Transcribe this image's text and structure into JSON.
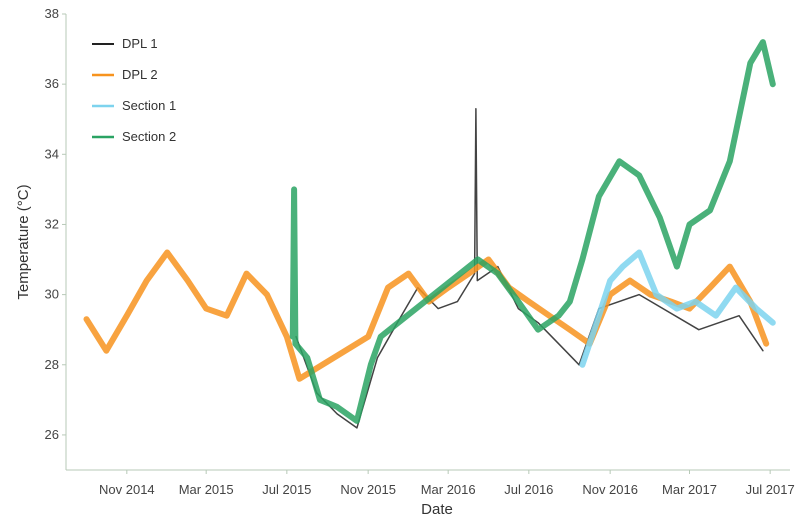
{
  "chart_data": {
    "type": "line",
    "xlabel": "Date",
    "ylabel": "Temperature (°C)",
    "x_range": [
      "2014-08-01",
      "2017-07-31"
    ],
    "ylim": [
      25,
      38
    ],
    "x_ticks": [
      {
        "date": "2014-11-01",
        "label": "Nov 2014"
      },
      {
        "date": "2015-03-01",
        "label": "Mar 2015"
      },
      {
        "date": "2015-07-01",
        "label": "Jul 2015"
      },
      {
        "date": "2015-11-01",
        "label": "Nov 2015"
      },
      {
        "date": "2016-03-01",
        "label": "Mar 2016"
      },
      {
        "date": "2016-07-01",
        "label": "Jul 2016"
      },
      {
        "date": "2016-11-01",
        "label": "Nov 2016"
      },
      {
        "date": "2017-03-01",
        "label": "Mar 2017"
      },
      {
        "date": "2017-07-01",
        "label": "Jul 2017"
      }
    ],
    "y_ticks": [
      26,
      28,
      30,
      32,
      34,
      36,
      38
    ],
    "grid": false,
    "legend_position": "top-left",
    "series": [
      {
        "name": "DPL 1",
        "color": "#222222",
        "points": [
          [
            "2015-07-15",
            28.8
          ],
          [
            "2015-08-15",
            27.2
          ],
          [
            "2015-09-15",
            26.6
          ],
          [
            "2015-10-15",
            26.2
          ],
          [
            "2015-11-15",
            28.2
          ],
          [
            "2015-12-15",
            29.2
          ],
          [
            "2016-01-15",
            30.2
          ],
          [
            "2016-02-15",
            29.6
          ],
          [
            "2016-03-15",
            29.8
          ],
          [
            "2016-04-10",
            30.6
          ],
          [
            "2016-04-12",
            35.3
          ],
          [
            "2016-04-14",
            30.4
          ],
          [
            "2016-05-15",
            30.8
          ],
          [
            "2016-06-15",
            29.6
          ],
          [
            "2016-07-15",
            29.2
          ],
          [
            "2016-08-15",
            28.6
          ],
          [
            "2016-09-15",
            28.0
          ],
          [
            "2016-10-15",
            29.6
          ],
          [
            "2016-12-15",
            30.0
          ],
          [
            "2017-03-15",
            29.0
          ],
          [
            "2017-05-15",
            29.4
          ],
          [
            "2017-06-20",
            28.4
          ]
        ]
      },
      {
        "name": "DPL 2",
        "color": "#f7931e",
        "points": [
          [
            "2014-09-01",
            29.3
          ],
          [
            "2014-10-01",
            28.4
          ],
          [
            "2014-11-01",
            29.4
          ],
          [
            "2014-12-01",
            30.4
          ],
          [
            "2015-01-01",
            31.2
          ],
          [
            "2015-02-01",
            30.4
          ],
          [
            "2015-03-01",
            29.6
          ],
          [
            "2015-04-01",
            29.4
          ],
          [
            "2015-05-01",
            30.6
          ],
          [
            "2015-06-01",
            30.0
          ],
          [
            "2015-07-01",
            28.8
          ],
          [
            "2015-07-20",
            27.6
          ],
          [
            "2015-11-01",
            28.8
          ],
          [
            "2015-12-01",
            30.2
          ],
          [
            "2016-01-01",
            30.6
          ],
          [
            "2016-02-01",
            29.8
          ],
          [
            "2016-03-01",
            30.2
          ],
          [
            "2016-04-01",
            30.6
          ],
          [
            "2016-05-01",
            31.0
          ],
          [
            "2016-06-01",
            30.2
          ],
          [
            "2016-07-01",
            29.8
          ],
          [
            "2016-08-01",
            29.4
          ],
          [
            "2016-09-01",
            29.0
          ],
          [
            "2016-10-01",
            28.6
          ],
          [
            "2016-11-01",
            30.0
          ],
          [
            "2016-12-01",
            30.4
          ],
          [
            "2017-01-01",
            30.0
          ],
          [
            "2017-02-01",
            29.8
          ],
          [
            "2017-03-01",
            29.6
          ],
          [
            "2017-04-01",
            30.2
          ],
          [
            "2017-05-01",
            30.8
          ],
          [
            "2017-06-01",
            29.8
          ],
          [
            "2017-06-25",
            28.6
          ]
        ]
      },
      {
        "name": "Section 1",
        "color": "#7dd3ee",
        "points": [
          [
            "2016-09-20",
            28.0
          ],
          [
            "2016-10-15",
            29.4
          ],
          [
            "2016-11-01",
            30.4
          ],
          [
            "2016-11-20",
            30.8
          ],
          [
            "2016-12-15",
            31.2
          ],
          [
            "2017-01-10",
            30.0
          ],
          [
            "2017-02-10",
            29.6
          ],
          [
            "2017-03-10",
            29.8
          ],
          [
            "2017-04-10",
            29.4
          ],
          [
            "2017-05-10",
            30.2
          ],
          [
            "2017-06-10",
            29.6
          ],
          [
            "2017-07-05",
            29.2
          ]
        ]
      },
      {
        "name": "Section 2",
        "color": "#2aa363",
        "points": [
          [
            "2015-07-10",
            28.8
          ],
          [
            "2015-07-12",
            33.0
          ],
          [
            "2015-07-14",
            28.6
          ],
          [
            "2015-08-01",
            28.2
          ],
          [
            "2015-08-20",
            27.0
          ],
          [
            "2015-09-15",
            26.8
          ],
          [
            "2015-10-15",
            26.4
          ],
          [
            "2015-11-05",
            28.0
          ],
          [
            "2015-11-20",
            28.8
          ],
          [
            "2016-04-15",
            31.0
          ],
          [
            "2016-05-15",
            30.6
          ],
          [
            "2016-06-15",
            29.8
          ],
          [
            "2016-07-15",
            29.0
          ],
          [
            "2016-08-15",
            29.4
          ],
          [
            "2016-09-01",
            29.8
          ],
          [
            "2016-09-20",
            31.0
          ],
          [
            "2016-10-15",
            32.8
          ],
          [
            "2016-11-15",
            33.8
          ],
          [
            "2016-12-15",
            33.4
          ],
          [
            "2017-01-15",
            32.2
          ],
          [
            "2017-02-10",
            30.8
          ],
          [
            "2017-03-01",
            32.0
          ],
          [
            "2017-04-01",
            32.4
          ],
          [
            "2017-05-01",
            33.8
          ],
          [
            "2017-06-01",
            36.6
          ],
          [
            "2017-06-20",
            37.2
          ],
          [
            "2017-07-05",
            36.0
          ]
        ]
      }
    ]
  }
}
